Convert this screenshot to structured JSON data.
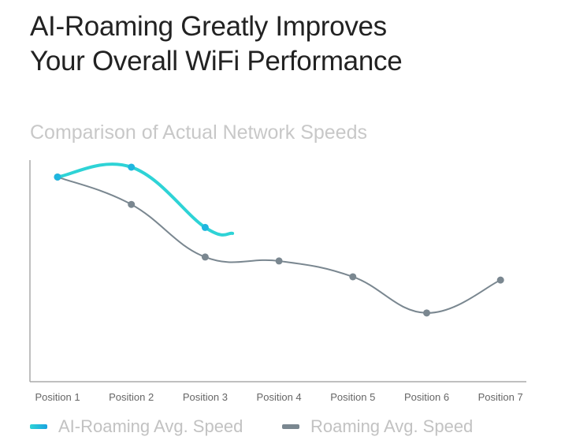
{
  "header": {
    "title_line1": "AI-Roaming Greatly Improves",
    "title_line2": "Your Overall WiFi Performance"
  },
  "chart_data": {
    "type": "line",
    "title": "Comparison of Actual Network Speeds",
    "xlabel": "",
    "ylabel": "",
    "categories": [
      "Position 1",
      "Position 2",
      "Position 3",
      "Position 4",
      "Position 5",
      "Position 6",
      "Position 7"
    ],
    "ylim": [
      0,
      100
    ],
    "y_ticks_shown": false,
    "grid": false,
    "legend_placement": "bottom-left",
    "series": [
      {
        "name": "AI-Roaming Avg. Speed",
        "color": "#2ed3d6",
        "values": [
          93,
          97.5,
          70,
          null,
          null,
          null,
          null
        ],
        "tail": {
          "x": 3.37,
          "y": 67.3
        }
      },
      {
        "name": "Roaming Avg. Speed",
        "color": "#7a8790",
        "values": [
          93,
          80.5,
          56.5,
          54.7,
          47.5,
          31,
          46
        ]
      }
    ]
  }
}
